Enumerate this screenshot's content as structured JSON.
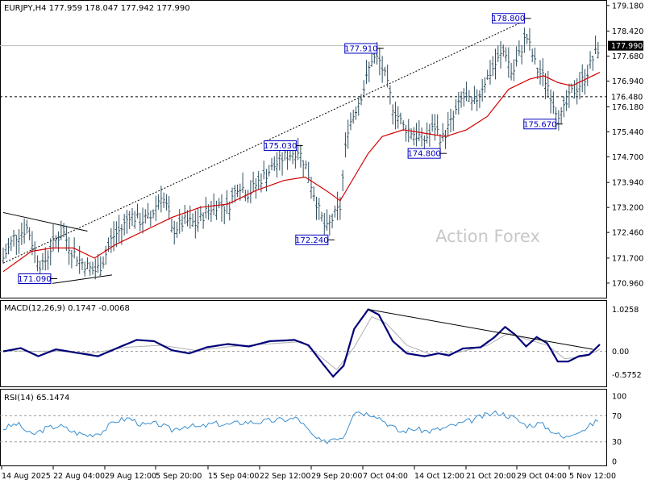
{
  "header": {
    "main_label": "EURJPY,H4  177.959 178.047 177.942 177.990",
    "macd_label": "MACD(12,26,9) 0.1747 -0.0068",
    "rsi_label": "RSI(14) 65.1474"
  },
  "watermark": "Action Forex",
  "colors": {
    "bars": "#2f4f5f",
    "ma": "#d40000",
    "macd_main": "#00007a",
    "macd_signal": "#b0b0b0",
    "rsi": "#3a8fd0",
    "frame": "#000000",
    "price_tag_bg": "#000000"
  },
  "chart_data": [
    {
      "type": "candlestick",
      "name": "EURJPY,H4",
      "ylim": [
        170.6,
        179.2
      ],
      "yticks": [
        "179.180",
        "178.420",
        "177.680",
        "176.940",
        "176.180",
        "175.440",
        "174.700",
        "173.940",
        "173.200",
        "172.460",
        "171.700",
        "170.960"
      ],
      "current_price": "177.990",
      "level_line": "176.480",
      "annotations": [
        {
          "label": "171.090",
          "t": 14,
          "v": 171.09
        },
        {
          "label": "175.030",
          "t": 84,
          "v": 175.03
        },
        {
          "label": "172.240",
          "t": 93,
          "v": 172.24
        },
        {
          "label": "177.910",
          "t": 107,
          "v": 177.91
        },
        {
          "label": "174.800",
          "t": 125,
          "v": 174.8
        },
        {
          "label": "178.800",
          "t": 149,
          "v": 178.8
        },
        {
          "label": "175.670",
          "t": 158,
          "v": 175.67
        }
      ],
      "close_path": [
        [
          0,
          171.7
        ],
        [
          3,
          172.3
        ],
        [
          7,
          172.6
        ],
        [
          9,
          171.9
        ],
        [
          11,
          171.4
        ],
        [
          14,
          172.1
        ],
        [
          17,
          172.5
        ],
        [
          19,
          172.0
        ],
        [
          22,
          171.6
        ],
        [
          26,
          171.3
        ],
        [
          28,
          171.5
        ],
        [
          31,
          172.3
        ],
        [
          34,
          172.6
        ],
        [
          36,
          173.0
        ],
        [
          39,
          172.8
        ],
        [
          42,
          172.9
        ],
        [
          45,
          173.6
        ],
        [
          47,
          173.1
        ],
        [
          48,
          172.5
        ],
        [
          52,
          172.8
        ],
        [
          55,
          172.7
        ],
        [
          58,
          173.1
        ],
        [
          61,
          173.3
        ],
        [
          64,
          173.2
        ],
        [
          67,
          173.9
        ],
        [
          70,
          173.6
        ],
        [
          73,
          174.0
        ],
        [
          77,
          174.4
        ],
        [
          80,
          174.7
        ],
        [
          84,
          174.9
        ],
        [
          86,
          174.5
        ],
        [
          88,
          173.8
        ],
        [
          90,
          173.1
        ],
        [
          92,
          172.5
        ],
        [
          94,
          172.9
        ],
        [
          96,
          173.2
        ],
        [
          98,
          175.5
        ],
        [
          100,
          176.0
        ],
        [
          103,
          176.8
        ],
        [
          105,
          177.6
        ],
        [
          107,
          177.6
        ],
        [
          109,
          177.0
        ],
        [
          111,
          176.2
        ],
        [
          114,
          175.6
        ],
        [
          117,
          175.4
        ],
        [
          120,
          175.2
        ],
        [
          123,
          175.6
        ],
        [
          125,
          175.2
        ],
        [
          128,
          175.8
        ],
        [
          131,
          176.5
        ],
        [
          134,
          176.2
        ],
        [
          137,
          176.9
        ],
        [
          140,
          177.4
        ],
        [
          143,
          177.9
        ],
        [
          145,
          177.1
        ],
        [
          147,
          177.7
        ],
        [
          149,
          178.3
        ],
        [
          152,
          177.3
        ],
        [
          155,
          176.9
        ],
        [
          157,
          176.2
        ],
        [
          159,
          175.9
        ],
        [
          162,
          176.6
        ],
        [
          164,
          176.8
        ],
        [
          166,
          177.1
        ],
        [
          168,
          177.6
        ],
        [
          170,
          177.99
        ]
      ],
      "ma_path": [
        [
          0,
          171.3
        ],
        [
          8,
          171.9
        ],
        [
          14,
          172.0
        ],
        [
          20,
          172.0
        ],
        [
          26,
          171.7
        ],
        [
          32,
          172.1
        ],
        [
          40,
          172.5
        ],
        [
          48,
          172.9
        ],
        [
          56,
          173.2
        ],
        [
          64,
          173.3
        ],
        [
          72,
          173.7
        ],
        [
          80,
          174.0
        ],
        [
          86,
          174.1
        ],
        [
          92,
          173.7
        ],
        [
          96,
          173.4
        ],
        [
          100,
          174.1
        ],
        [
          104,
          174.8
        ],
        [
          108,
          175.3
        ],
        [
          114,
          175.5
        ],
        [
          120,
          175.4
        ],
        [
          126,
          175.3
        ],
        [
          132,
          175.5
        ],
        [
          138,
          175.9
        ],
        [
          144,
          176.7
        ],
        [
          150,
          177.0
        ],
        [
          154,
          177.1
        ],
        [
          158,
          176.9
        ],
        [
          162,
          176.8
        ],
        [
          166,
          177.0
        ],
        [
          170,
          177.2
        ]
      ],
      "trendlines": [
        {
          "t1": 0,
          "v1": 171.55,
          "t2": 148,
          "v2": 178.7,
          "style": "dotted"
        },
        {
          "t1": 0,
          "v1": 173.05,
          "t2": 24,
          "v2": 172.5,
          "style": "solid"
        },
        {
          "t1": 14,
          "v1": 170.95,
          "t2": 31,
          "v2": 171.2,
          "style": "solid"
        }
      ],
      "x_categories": [
        "14 Aug 2025",
        "22 Aug 04:00",
        "29 Aug 12:00",
        "5 Sep 20:00",
        "15 Sep 04:00",
        "22 Sep 12:00",
        "29 Sep 20:00",
        "7 Oct 04:00",
        "14 Oct 12:00",
        "21 Oct 20:00",
        "29 Oct 04:00",
        "5 Nov 12:00"
      ]
    },
    {
      "type": "line",
      "name": "MACD(12,26,9)",
      "ylim": [
        -0.8,
        1.1
      ],
      "yticks": [
        "1.0258",
        "0.00",
        "-0.5752"
      ],
      "main": [
        [
          0,
          0.0
        ],
        [
          5,
          0.08
        ],
        [
          10,
          -0.12
        ],
        [
          15,
          0.05
        ],
        [
          22,
          -0.05
        ],
        [
          27,
          -0.12
        ],
        [
          33,
          0.1
        ],
        [
          38,
          0.28
        ],
        [
          43,
          0.25
        ],
        [
          48,
          0.03
        ],
        [
          53,
          -0.05
        ],
        [
          58,
          0.1
        ],
        [
          64,
          0.18
        ],
        [
          70,
          0.12
        ],
        [
          76,
          0.25
        ],
        [
          83,
          0.28
        ],
        [
          87,
          0.15
        ],
        [
          91,
          -0.3
        ],
        [
          94,
          -0.62
        ],
        [
          97,
          -0.35
        ],
        [
          100,
          0.55
        ],
        [
          104,
          1.03
        ],
        [
          107,
          0.9
        ],
        [
          111,
          0.25
        ],
        [
          115,
          -0.05
        ],
        [
          120,
          -0.12
        ],
        [
          124,
          -0.05
        ],
        [
          127,
          -0.1
        ],
        [
          131,
          0.07
        ],
        [
          136,
          0.1
        ],
        [
          140,
          0.35
        ],
        [
          143,
          0.6
        ],
        [
          146,
          0.4
        ],
        [
          149,
          0.12
        ],
        [
          152,
          0.35
        ],
        [
          155,
          0.2
        ],
        [
          158,
          -0.25
        ],
        [
          161,
          -0.25
        ],
        [
          164,
          -0.12
        ],
        [
          167,
          -0.08
        ],
        [
          170,
          0.17
        ]
      ],
      "signal": [
        [
          0,
          0.02
        ],
        [
          8,
          0.0
        ],
        [
          15,
          0.01
        ],
        [
          25,
          -0.05
        ],
        [
          35,
          0.1
        ],
        [
          45,
          0.15
        ],
        [
          55,
          0.02
        ],
        [
          65,
          0.12
        ],
        [
          75,
          0.18
        ],
        [
          85,
          0.24
        ],
        [
          90,
          -0.1
        ],
        [
          95,
          -0.45
        ],
        [
          100,
          0.1
        ],
        [
          105,
          0.85
        ],
        [
          109,
          0.7
        ],
        [
          115,
          0.15
        ],
        [
          122,
          -0.08
        ],
        [
          130,
          -0.02
        ],
        [
          138,
          0.15
        ],
        [
          144,
          0.45
        ],
        [
          149,
          0.3
        ],
        [
          155,
          0.15
        ],
        [
          160,
          -0.18
        ],
        [
          166,
          -0.12
        ],
        [
          170,
          0.05
        ]
      ],
      "trendline": {
        "t1": 104,
        "v1": 1.03,
        "t2": 168,
        "v2": 0.05
      }
    },
    {
      "type": "line",
      "name": "RSI(14)",
      "ylim": [
        0,
        100
      ],
      "yticks": [
        "100",
        "70",
        "30",
        "0"
      ],
      "levels": [
        70,
        30
      ],
      "values": [
        [
          0,
          50
        ],
        [
          4,
          58
        ],
        [
          8,
          40
        ],
        [
          12,
          50
        ],
        [
          16,
          55
        ],
        [
          20,
          45
        ],
        [
          24,
          40
        ],
        [
          28,
          45
        ],
        [
          32,
          62
        ],
        [
          36,
          66
        ],
        [
          40,
          55
        ],
        [
          44,
          58
        ],
        [
          48,
          48
        ],
        [
          52,
          55
        ],
        [
          56,
          52
        ],
        [
          60,
          58
        ],
        [
          64,
          56
        ],
        [
          68,
          60
        ],
        [
          72,
          60
        ],
        [
          76,
          62
        ],
        [
          80,
          64
        ],
        [
          84,
          66
        ],
        [
          88,
          40
        ],
        [
          91,
          28
        ],
        [
          94,
          36
        ],
        [
          97,
          38
        ],
        [
          100,
          78
        ],
        [
          103,
          74
        ],
        [
          106,
          72
        ],
        [
          109,
          60
        ],
        [
          113,
          45
        ],
        [
          117,
          50
        ],
        [
          121,
          46
        ],
        [
          125,
          50
        ],
        [
          129,
          56
        ],
        [
          133,
          62
        ],
        [
          137,
          70
        ],
        [
          141,
          75
        ],
        [
          145,
          68
        ],
        [
          149,
          55
        ],
        [
          153,
          58
        ],
        [
          157,
          45
        ],
        [
          160,
          35
        ],
        [
          163,
          46
        ],
        [
          166,
          50
        ],
        [
          170,
          65
        ]
      ]
    }
  ]
}
